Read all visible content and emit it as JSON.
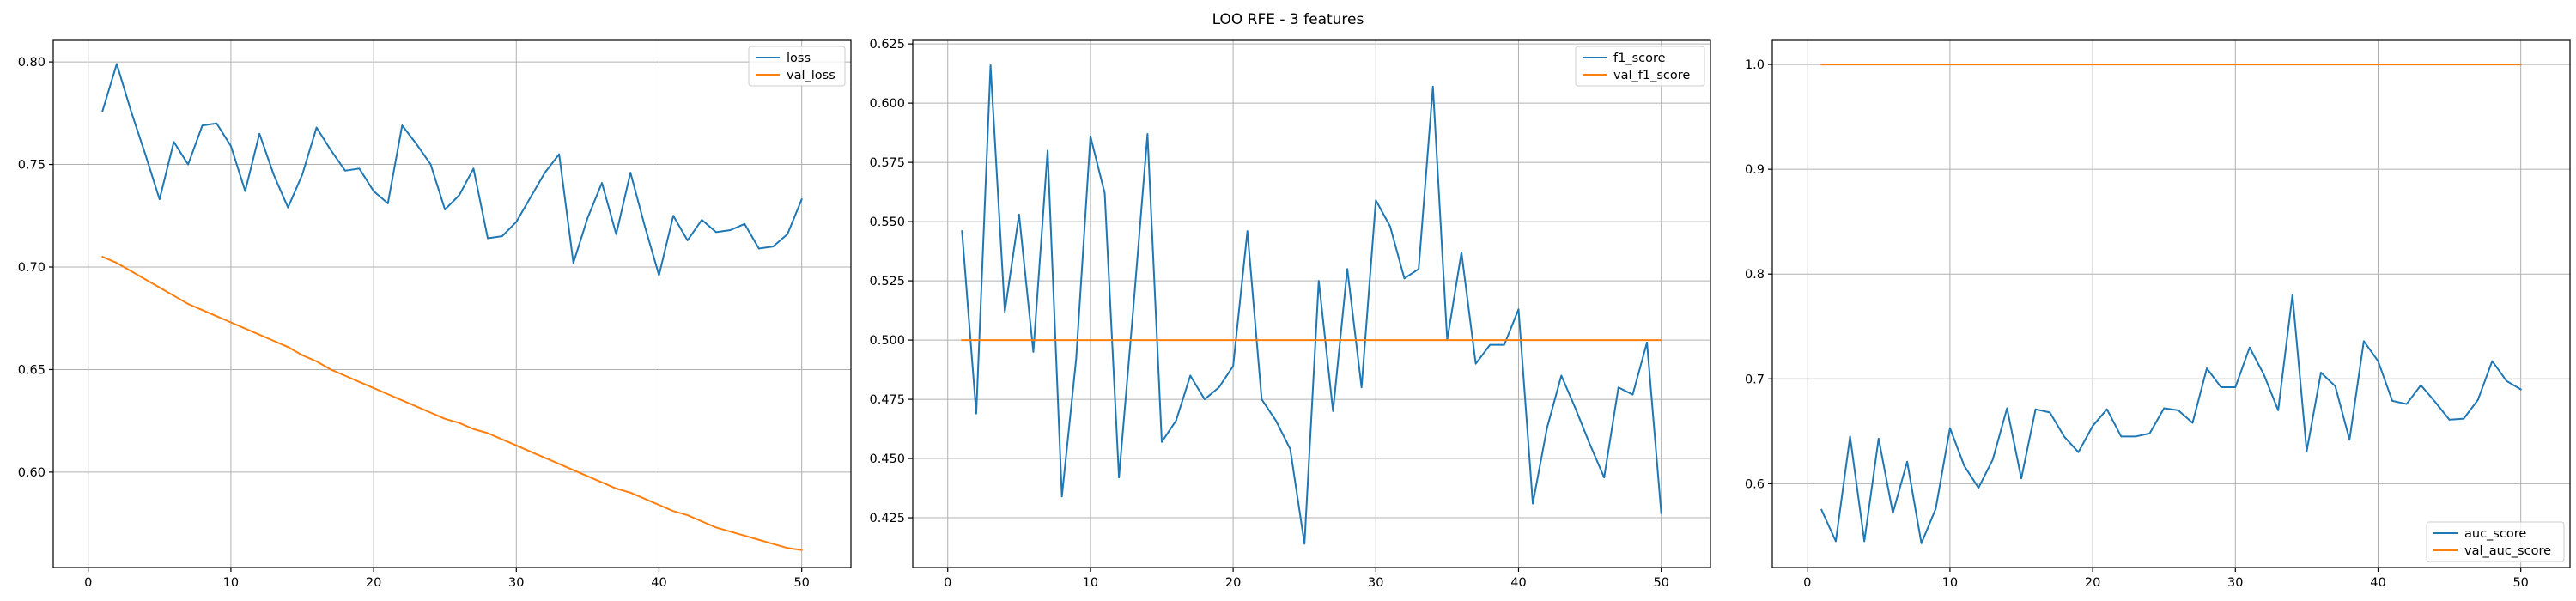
{
  "figure": {
    "title": "LOO RFE - 3 features"
  },
  "colors": {
    "train": "#1f77b4",
    "val": "#ff7f0e",
    "grid": "#b0b0b0"
  },
  "chart_data": [
    {
      "type": "line",
      "title": "",
      "xlabel": "",
      "ylabel": "",
      "xlim": [
        -2.45,
        53.45
      ],
      "ylim": [
        0.5535,
        0.8105
      ],
      "xticks": [
        0,
        10,
        20,
        30,
        40,
        50
      ],
      "yticks": [
        0.6,
        0.65,
        0.7,
        0.75,
        0.8
      ],
      "ytick_labels": [
        "0.60",
        "0.65",
        "0.70",
        "0.75",
        "0.80"
      ],
      "grid": true,
      "legend_position": "upper right",
      "series": [
        {
          "name": "loss",
          "color": "#1f77b4",
          "x": [
            1,
            2,
            3,
            4,
            5,
            6,
            7,
            8,
            9,
            10,
            11,
            12,
            13,
            14,
            15,
            16,
            17,
            18,
            19,
            20,
            21,
            22,
            23,
            24,
            25,
            26,
            27,
            28,
            29,
            30,
            31,
            32,
            33,
            34,
            35,
            36,
            37,
            38,
            39,
            40,
            41,
            42,
            43,
            44,
            45,
            46,
            47,
            48,
            49,
            50
          ],
          "y": [
            0.776,
            0.799,
            0.776,
            0.755,
            0.733,
            0.761,
            0.75,
            0.769,
            0.77,
            0.759,
            0.737,
            0.765,
            0.745,
            0.729,
            0.745,
            0.768,
            0.757,
            0.747,
            0.748,
            0.737,
            0.731,
            0.769,
            0.76,
            0.75,
            0.728,
            0.735,
            0.748,
            0.714,
            0.715,
            0.722,
            0.734,
            0.746,
            0.755,
            0.702,
            0.724,
            0.741,
            0.716,
            0.746,
            0.72,
            0.696,
            0.725,
            0.713,
            0.723,
            0.717,
            0.718,
            0.721,
            0.709,
            0.71,
            0.716,
            0.733
          ]
        },
        {
          "name": "val_loss",
          "color": "#ff7f0e",
          "x": [
            1,
            2,
            3,
            4,
            5,
            6,
            7,
            8,
            9,
            10,
            11,
            12,
            13,
            14,
            15,
            16,
            17,
            18,
            19,
            20,
            21,
            22,
            23,
            24,
            25,
            26,
            27,
            28,
            29,
            30,
            31,
            32,
            33,
            34,
            35,
            36,
            37,
            38,
            39,
            40,
            41,
            42,
            43,
            44,
            45,
            46,
            47,
            48,
            49,
            50
          ],
          "y": [
            0.705,
            0.702,
            0.698,
            0.694,
            0.69,
            0.686,
            0.682,
            0.679,
            0.676,
            0.673,
            0.67,
            0.667,
            0.664,
            0.661,
            0.657,
            0.654,
            0.65,
            0.647,
            0.644,
            0.641,
            0.638,
            0.635,
            0.632,
            0.629,
            0.626,
            0.624,
            0.621,
            0.619,
            0.616,
            0.613,
            0.61,
            0.607,
            0.604,
            0.601,
            0.598,
            0.595,
            0.592,
            0.59,
            0.587,
            0.584,
            0.581,
            0.579,
            0.576,
            0.573,
            0.571,
            0.569,
            0.567,
            0.565,
            0.563,
            0.562
          ]
        }
      ]
    },
    {
      "type": "line",
      "title": "",
      "xlabel": "",
      "ylabel": "",
      "xlim": [
        -2.45,
        53.45
      ],
      "ylim": [
        0.404,
        0.6265
      ],
      "xticks": [
        0,
        10,
        20,
        30,
        40,
        50
      ],
      "yticks": [
        0.425,
        0.45,
        0.475,
        0.5,
        0.525,
        0.55,
        0.575,
        0.6,
        0.625
      ],
      "ytick_labels": [
        "0.425",
        "0.450",
        "0.475",
        "0.500",
        "0.525",
        "0.550",
        "0.575",
        "0.600",
        "0.625"
      ],
      "grid": true,
      "legend_position": "upper right",
      "series": [
        {
          "name": "f1_score",
          "color": "#1f77b4",
          "x": [
            1,
            2,
            3,
            4,
            5,
            6,
            7,
            8,
            9,
            10,
            11,
            12,
            13,
            14,
            15,
            16,
            17,
            18,
            19,
            20,
            21,
            22,
            23,
            24,
            25,
            26,
            27,
            28,
            29,
            30,
            31,
            32,
            33,
            34,
            35,
            36,
            37,
            38,
            39,
            40,
            41,
            42,
            43,
            44,
            45,
            46,
            47,
            48,
            49,
            50
          ],
          "y": [
            0.546,
            0.469,
            0.616,
            0.512,
            0.553,
            0.495,
            0.58,
            0.434,
            0.492,
            0.586,
            0.562,
            0.442,
            0.513,
            0.587,
            0.457,
            0.466,
            0.485,
            0.475,
            0.48,
            0.489,
            0.546,
            0.475,
            0.466,
            0.454,
            0.414,
            0.525,
            0.47,
            0.53,
            0.48,
            0.559,
            0.548,
            0.526,
            0.53,
            0.607,
            0.5,
            0.537,
            0.49,
            0.498,
            0.498,
            0.513,
            0.431,
            0.463,
            0.485,
            0.471,
            0.456,
            0.442,
            0.48,
            0.477,
            0.499,
            0.427
          ]
        },
        {
          "name": "val_f1_score",
          "color": "#ff7f0e",
          "x": [
            1,
            2,
            3,
            4,
            5,
            6,
            7,
            8,
            9,
            10,
            11,
            12,
            13,
            14,
            15,
            16,
            17,
            18,
            19,
            20,
            21,
            22,
            23,
            24,
            25,
            26,
            27,
            28,
            29,
            30,
            31,
            32,
            33,
            34,
            35,
            36,
            37,
            38,
            39,
            40,
            41,
            42,
            43,
            44,
            45,
            46,
            47,
            48,
            49,
            50
          ],
          "y": [
            0.5,
            0.5,
            0.5,
            0.5,
            0.5,
            0.5,
            0.5,
            0.5,
            0.5,
            0.5,
            0.5,
            0.5,
            0.5,
            0.5,
            0.5,
            0.5,
            0.5,
            0.5,
            0.5,
            0.5,
            0.5,
            0.5,
            0.5,
            0.5,
            0.5,
            0.5,
            0.5,
            0.5,
            0.5,
            0.5,
            0.5,
            0.5,
            0.5,
            0.5,
            0.5,
            0.5,
            0.5,
            0.5,
            0.5,
            0.5,
            0.5,
            0.5,
            0.5,
            0.5,
            0.5,
            0.5,
            0.5,
            0.5,
            0.5,
            0.5
          ]
        }
      ]
    },
    {
      "type": "line",
      "title": "",
      "xlabel": "",
      "ylabel": "",
      "xlim": [
        -2.45,
        53.45
      ],
      "ylim": [
        0.52,
        1.023
      ],
      "xticks": [
        0,
        10,
        20,
        30,
        40,
        50
      ],
      "yticks": [
        0.6,
        0.7,
        0.8,
        0.9,
        1.0
      ],
      "ytick_labels": [
        "0.6",
        "0.7",
        "0.8",
        "0.9",
        "1.0"
      ],
      "grid": true,
      "legend_position": "lower right",
      "series": [
        {
          "name": "auc_score",
          "color": "#1f77b4",
          "x": [
            1,
            2,
            3,
            4,
            5,
            6,
            7,
            8,
            9,
            10,
            11,
            12,
            13,
            14,
            15,
            16,
            17,
            18,
            19,
            20,
            21,
            22,
            23,
            24,
            25,
            26,
            27,
            28,
            29,
            30,
            31,
            32,
            33,
            34,
            35,
            36,
            37,
            38,
            39,
            40,
            41,
            42,
            43,
            44,
            45,
            46,
            47,
            48,
            49,
            50
          ],
          "y": [
            0.575,
            0.545,
            0.645,
            0.545,
            0.643,
            0.572,
            0.621,
            0.543,
            0.576,
            0.653,
            0.617,
            0.596,
            0.623,
            0.672,
            0.605,
            0.671,
            0.668,
            0.645,
            0.63,
            0.655,
            0.671,
            0.645,
            0.645,
            0.648,
            0.672,
            0.67,
            0.658,
            0.71,
            0.692,
            0.692,
            0.73,
            0.704,
            0.67,
            0.78,
            0.631,
            0.706,
            0.693,
            0.642,
            0.736,
            0.717,
            0.679,
            0.676,
            0.694,
            0.678,
            0.661,
            0.662,
            0.68,
            0.717,
            0.698,
            0.69
          ]
        },
        {
          "name": "val_auc_score",
          "color": "#ff7f0e",
          "x": [
            1,
            2,
            3,
            4,
            5,
            6,
            7,
            8,
            9,
            10,
            11,
            12,
            13,
            14,
            15,
            16,
            17,
            18,
            19,
            20,
            21,
            22,
            23,
            24,
            25,
            26,
            27,
            28,
            29,
            30,
            31,
            32,
            33,
            34,
            35,
            36,
            37,
            38,
            39,
            40,
            41,
            42,
            43,
            44,
            45,
            46,
            47,
            48,
            49,
            50
          ],
          "y": [
            1.0,
            1.0,
            1.0,
            1.0,
            1.0,
            1.0,
            1.0,
            1.0,
            1.0,
            1.0,
            1.0,
            1.0,
            1.0,
            1.0,
            1.0,
            1.0,
            1.0,
            1.0,
            1.0,
            1.0,
            1.0,
            1.0,
            1.0,
            1.0,
            1.0,
            1.0,
            1.0,
            1.0,
            1.0,
            1.0,
            1.0,
            1.0,
            1.0,
            1.0,
            1.0,
            1.0,
            1.0,
            1.0,
            1.0,
            1.0,
            1.0,
            1.0,
            1.0,
            1.0,
            1.0,
            1.0,
            1.0,
            1.0,
            1.0,
            1.0
          ]
        }
      ]
    }
  ]
}
